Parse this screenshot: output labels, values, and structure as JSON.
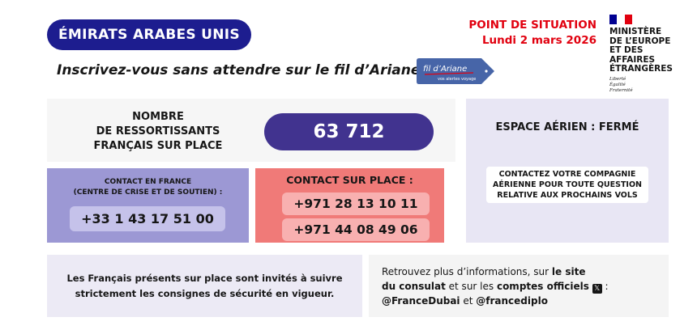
{
  "header": {
    "country": "ÉMIRATS ARABES UNIS",
    "tagline": "Inscrivez-vous sans attendre sur le fil d’Ariane.",
    "fil_ariane": {
      "name": "fil d’Ariane",
      "subtitle": "vos alertes voyage"
    },
    "situation_label": "POINT DE SITUATION",
    "date": "Lundi 2 mars 2026",
    "ministry": {
      "name_lines": [
        "MINISTÈRE",
        "DE L’EUROPE",
        "ET DES AFFAIRES",
        "ÉTRANGÈRES"
      ],
      "motto": [
        "Liberté",
        "Égalité",
        "Fraternité"
      ]
    }
  },
  "count": {
    "label_lines": [
      "NOMBRE",
      "DE RESSORTISSANTS",
      "FRANÇAIS SUR PLACE"
    ],
    "value": "63 712"
  },
  "airspace": {
    "title": "ESPACE AÉRIEN : FERMÉ",
    "advice_lines": [
      "CONTACTEZ VOTRE COMPAGNIE",
      "AÉRIENNE POUR TOUTE QUESTION",
      "RELATIVE AUX PROCHAINS VOLS"
    ]
  },
  "contact_france": {
    "title_lines": [
      "CONTACT EN FRANCE",
      "(CENTRE DE CRISE ET DE SOUTIEN) :"
    ],
    "phone": "+33 1 43 17 51 00"
  },
  "contact_local": {
    "title": "CONTACT SUR PLACE :",
    "phones": [
      "+971 28 13 10 11",
      "+971 44 08 49 06"
    ]
  },
  "notice": {
    "lines": [
      "Les Français présents sur place sont invités à suivre",
      "strictement les consignes de sécurité en vigueur."
    ]
  },
  "info": {
    "t1": "Retrouvez plus d’informations, sur ",
    "t2": "le site",
    "t3": "du consulat",
    "t4": " et sur les ",
    "t5": "comptes officiels",
    "t6": " :",
    "handle1": "@FranceDubai",
    "t7": " et ",
    "handle2": "@francediplo",
    "x_icon": "x-logo-icon"
  },
  "colors": {
    "navy": "#1d1d8f",
    "count_pill": "#41338f",
    "red": "#e1000f",
    "contact_france": "#9c98d4",
    "contact_local": "#f07a78"
  }
}
